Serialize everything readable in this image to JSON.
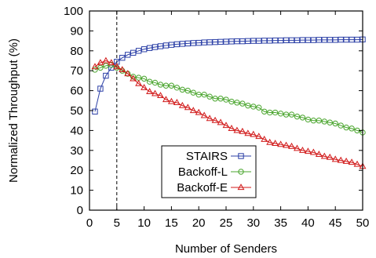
{
  "chart_data": {
    "type": "line",
    "xlabel": "Number of Senders",
    "ylabel": "Normalized Throughput (%)",
    "xlim": [
      0,
      50
    ],
    "ylim": [
      0,
      100
    ],
    "xticks": [
      0,
      5,
      10,
      15,
      20,
      25,
      30,
      35,
      40,
      45,
      50
    ],
    "yticks": [
      0,
      10,
      20,
      30,
      40,
      50,
      60,
      70,
      80,
      90,
      100
    ],
    "grid": false,
    "legend_position": "bottom-center",
    "vertical_reference_line": {
      "x": 5,
      "style": "dashed"
    },
    "x": [
      1,
      2,
      3,
      4,
      5,
      6,
      7,
      8,
      9,
      10,
      11,
      12,
      13,
      14,
      15,
      16,
      17,
      18,
      19,
      20,
      21,
      22,
      23,
      24,
      25,
      26,
      27,
      28,
      29,
      30,
      31,
      32,
      33,
      34,
      35,
      36,
      37,
      38,
      39,
      40,
      41,
      42,
      43,
      44,
      45,
      46,
      47,
      48,
      49,
      50
    ],
    "series": [
      {
        "name": "STAIRS",
        "color": "#2b3fa6",
        "marker": "square",
        "values": [
          49.5,
          61.0,
          67.5,
          71.5,
          74.5,
          76.5,
          78.0,
          79.0,
          80.0,
          80.8,
          81.4,
          81.9,
          82.3,
          82.7,
          83.0,
          83.3,
          83.5,
          83.7,
          83.9,
          84.0,
          84.2,
          84.3,
          84.4,
          84.5,
          84.6,
          84.7,
          84.8,
          84.8,
          84.9,
          85.0,
          85.0,
          85.1,
          85.1,
          85.2,
          85.2,
          85.3,
          85.3,
          85.3,
          85.4,
          85.4,
          85.4,
          85.5,
          85.5,
          85.5,
          85.5,
          85.6,
          85.6,
          85.6,
          85.6,
          85.7
        ]
      },
      {
        "name": "Backoff-L",
        "color": "#4aa52e",
        "marker": "circle",
        "values": [
          70.5,
          71.5,
          72.5,
          73.0,
          71.5,
          70.0,
          68.5,
          67.0,
          66.5,
          66.0,
          64.5,
          64.0,
          63.0,
          62.5,
          62.5,
          61.5,
          60.5,
          60.0,
          59.0,
          58.0,
          58.0,
          57.0,
          56.0,
          56.0,
          55.5,
          54.5,
          54.0,
          53.5,
          52.5,
          52.0,
          51.5,
          49.5,
          49.0,
          49.0,
          48.5,
          48.0,
          48.0,
          47.0,
          46.5,
          45.5,
          45.0,
          45.0,
          44.5,
          44.0,
          43.5,
          42.5,
          41.5,
          41.0,
          40.0,
          39.0
        ]
      },
      {
        "name": "Backoff-E",
        "color": "#d11919",
        "marker": "triangle",
        "values": [
          72.0,
          74.0,
          75.0,
          74.0,
          72.0,
          70.5,
          68.5,
          66.0,
          63.5,
          61.5,
          59.5,
          58.5,
          57.5,
          55.5,
          54.5,
          54.0,
          52.5,
          51.5,
          50.0,
          49.0,
          47.5,
          46.0,
          45.0,
          44.0,
          42.5,
          41.0,
          40.0,
          39.5,
          38.5,
          38.0,
          37.0,
          35.5,
          34.0,
          33.5,
          33.0,
          32.5,
          32.0,
          31.0,
          30.0,
          29.5,
          29.0,
          28.0,
          27.0,
          26.5,
          25.5,
          25.0,
          24.5,
          24.0,
          23.0,
          22.0
        ]
      }
    ]
  }
}
